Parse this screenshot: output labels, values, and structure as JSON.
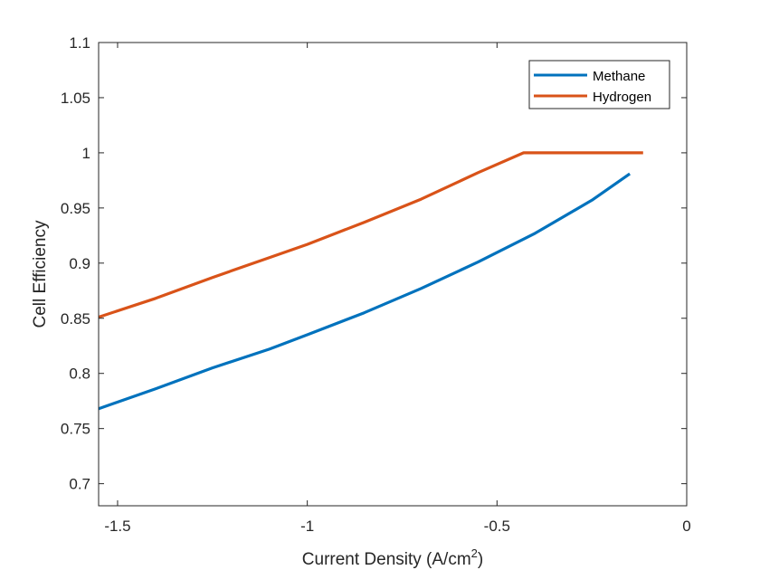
{
  "chart_data": {
    "type": "line",
    "xlabel": "Current Density (A/cm",
    "xlabel_superscript": "2",
    "xlabel_suffix": ")",
    "ylabel": "Cell Efficiency",
    "xlim": [
      -1.55,
      0
    ],
    "ylim": [
      0.68,
      1.1
    ],
    "xticks": [
      -1.5,
      -1,
      -0.5,
      0
    ],
    "xtick_labels": [
      "-1.5",
      "-1",
      "-0.5",
      "0"
    ],
    "yticks": [
      0.7,
      0.75,
      0.8,
      0.85,
      0.9,
      0.95,
      1,
      1.05,
      1.1
    ],
    "ytick_labels": [
      "0.7",
      "0.75",
      "0.8",
      "0.85",
      "0.9",
      "0.95",
      "1",
      "1.05",
      "1.1"
    ],
    "grid": false,
    "legend_position": "top-right",
    "series": [
      {
        "name": "Methane",
        "color": "#0072BD",
        "x": [
          -1.55,
          -1.4,
          -1.25,
          -1.1,
          -1.0,
          -0.85,
          -0.7,
          -0.55,
          -0.4,
          -0.25,
          -0.15
        ],
        "y": [
          0.768,
          0.786,
          0.805,
          0.822,
          0.835,
          0.855,
          0.877,
          0.901,
          0.927,
          0.957,
          0.981
        ]
      },
      {
        "name": "Hydrogen",
        "color": "#D95319",
        "x": [
          -1.55,
          -1.4,
          -1.25,
          -1.1,
          -1.0,
          -0.85,
          -0.7,
          -0.55,
          -0.43,
          -0.35,
          -0.2,
          -0.115
        ],
        "y": [
          0.851,
          0.868,
          0.887,
          0.905,
          0.917,
          0.937,
          0.958,
          0.982,
          1.0,
          1.0,
          1.0,
          1.0
        ]
      }
    ]
  }
}
